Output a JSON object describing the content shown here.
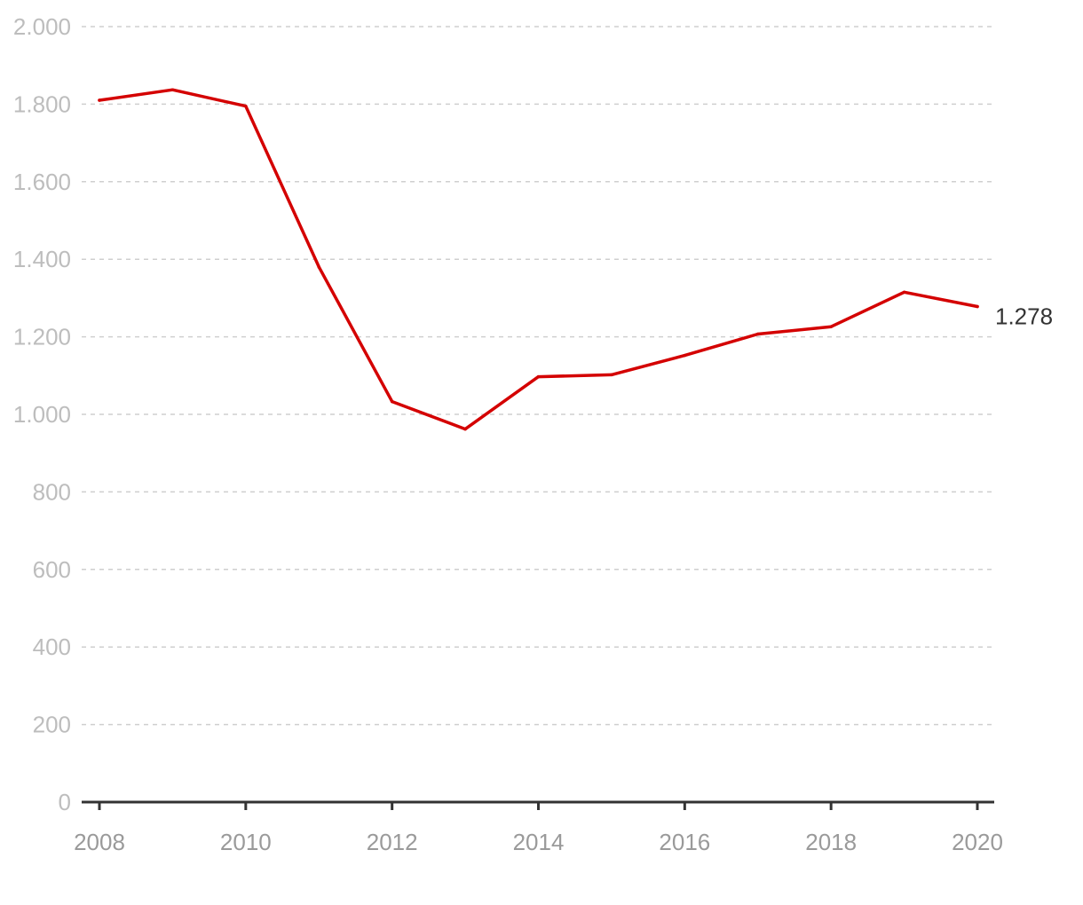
{
  "chart_data": {
    "type": "line",
    "title": "",
    "xlabel": "",
    "ylabel": "",
    "x": [
      2008,
      2009,
      2010,
      2011,
      2012,
      2013,
      2014,
      2015,
      2016,
      2017,
      2018,
      2019,
      2020
    ],
    "series": [
      {
        "values": [
          1810,
          1837,
          1795,
          1380,
          1033,
          962,
          1097,
          1102,
          1152,
          1207,
          1226,
          1315,
          1278
        ],
        "color": "#d40000"
      }
    ],
    "ylim": [
      0,
      2000
    ],
    "yticks": [
      0,
      200,
      400,
      600,
      800,
      1000,
      1200,
      1400,
      1600,
      1800,
      2000
    ],
    "ytick_labels": [
      "0",
      "200",
      "400",
      "600",
      "800",
      "1.000",
      "1.200",
      "1.400",
      "1.600",
      "1.800",
      "2.000"
    ],
    "xticks": [
      2008,
      2010,
      2012,
      2014,
      2016,
      2018,
      2020
    ],
    "xtick_labels": [
      "2008",
      "2010",
      "2012",
      "2014",
      "2016",
      "2018",
      "2020"
    ],
    "end_label": "1.278",
    "grid": true,
    "legend": "none"
  }
}
